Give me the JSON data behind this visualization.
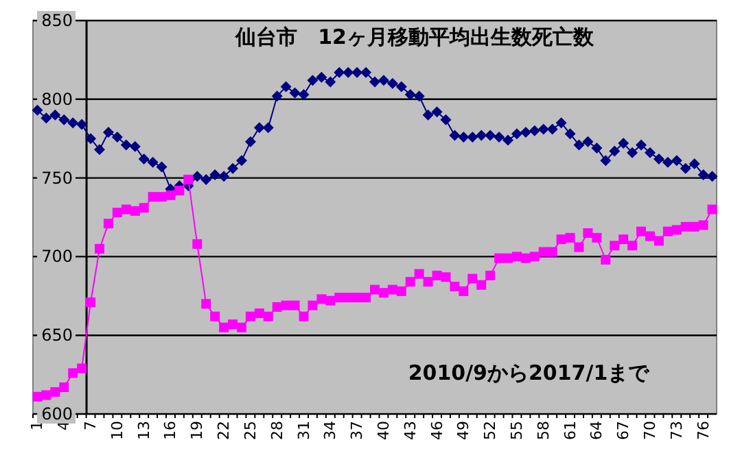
{
  "chart_data": {
    "type": "line",
    "title": "仙台市　12ヶ月移動平均出生数死亡数",
    "annotations": [
      "2010/9から2017/1まで"
    ],
    "categories": [
      "1",
      null,
      null,
      "4",
      null,
      null,
      "7",
      null,
      null,
      "10",
      null,
      null,
      "13",
      null,
      null,
      "16",
      null,
      null,
      "19",
      null,
      null,
      "22",
      null,
      null,
      "25",
      null,
      null,
      "28",
      null,
      null,
      "31",
      null,
      null,
      "34",
      null,
      null,
      "37",
      null,
      null,
      "40",
      null,
      null,
      "43",
      null,
      null,
      "46",
      null,
      null,
      "49",
      null,
      null,
      "52",
      null,
      null,
      "55",
      null,
      null,
      "58",
      null,
      null,
      "61",
      null,
      null,
      "64",
      null,
      null,
      "67",
      null,
      null,
      "70",
      null,
      null,
      "73",
      null,
      null,
      "76",
      null
    ],
    "series": [
      {
        "color": "#000080",
        "marker": "diamond",
        "values": [
          793,
          788,
          790,
          787,
          785,
          784,
          775,
          768,
          779,
          776,
          771,
          770,
          762,
          760,
          757,
          743,
          745,
          745,
          751,
          749,
          752,
          751,
          756,
          761,
          773,
          782,
          782,
          802,
          808,
          804,
          803,
          812,
          814,
          811,
          817,
          817,
          817,
          817,
          811,
          812,
          810,
          808,
          803,
          802,
          790,
          792,
          787,
          777,
          776,
          776,
          777,
          777,
          776,
          774,
          778,
          779,
          780,
          781,
          781,
          785,
          778,
          771,
          773,
          769,
          761,
          767,
          772,
          766,
          771,
          766,
          762,
          760,
          761,
          756,
          759,
          752,
          751
        ]
      },
      {
        "color": "#ff00ff",
        "marker": "square",
        "values": [
          611,
          612,
          614,
          617,
          626,
          629,
          671,
          705,
          721,
          728,
          730,
          729,
          731,
          738,
          738,
          739,
          742,
          749,
          708,
          670,
          662,
          655,
          657,
          655,
          662,
          664,
          662,
          668,
          669,
          669,
          662,
          669,
          673,
          672,
          674,
          674,
          674,
          674,
          679,
          677,
          679,
          678,
          684,
          689,
          684,
          688,
          687,
          681,
          678,
          686,
          682,
          688,
          699,
          699,
          700,
          699,
          700,
          703,
          703,
          711,
          712,
          706,
          715,
          712,
          698,
          707,
          711,
          707,
          716,
          713,
          710,
          716,
          717,
          719,
          719,
          720,
          730
        ]
      }
    ],
    "ylim": [
      600,
      850
    ],
    "yticks": [
      600,
      650,
      700,
      750,
      800,
      850
    ],
    "grid": "y",
    "ref_lines": [
      {
        "axis": "x",
        "value": "7",
        "color": "#000000"
      }
    ],
    "line_style": "solid"
  }
}
